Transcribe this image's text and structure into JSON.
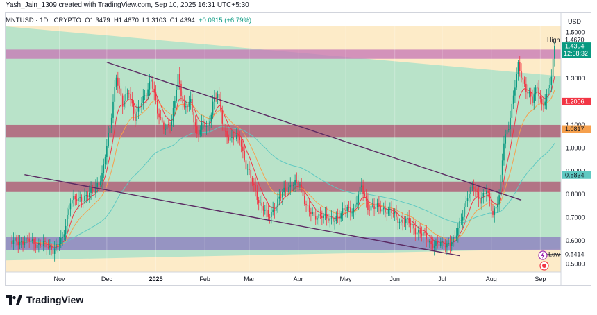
{
  "credit": "Yash_Jain_1309 created with TradingView.com, Sep 10, 2025 16:31 UTC+5:30",
  "symbol_line": {
    "symbol": "MNTUSD · 1D · CRYPTO",
    "open": "O1.3479",
    "high": "H1.4670",
    "low": "L1.3103",
    "close": "C1.4394",
    "change": "+0.0915 (+6.79%)"
  },
  "brand": "TradingView",
  "colors": {
    "up": "#089981",
    "down": "#f23645",
    "green_zone": "#b9e3c9",
    "yellow_zone": "#fdebc8",
    "pink_zone": "#c778b6",
    "purple_zone": "#8c7ec0",
    "maroon_zone": "#b05472",
    "ema_fast": "#f23645",
    "ema_mid": "#f6a04d",
    "ema_slow": "#5fc9c2",
    "trendline": "#5b2a63"
  },
  "chart_data": {
    "type": "candlestick",
    "currency": "USD",
    "y_ticks": [
      "1.5000",
      "1.4000",
      "1.3000",
      "1.2000",
      "1.1000",
      "1.0000",
      "0.9000",
      "0.8000",
      "0.7000",
      "0.6000",
      "0.5000"
    ],
    "x_ticks": [
      "Nov",
      "Dec",
      "2025",
      "Feb",
      "Mar",
      "Apr",
      "May",
      "Jun",
      "Jul",
      "Aug",
      "Sep"
    ],
    "high_label": "High",
    "low_label": "Low",
    "price_badges": [
      {
        "value": "1.4670",
        "kind": "high"
      },
      {
        "value": "1.4394",
        "kind": "last",
        "time": "12:58:32"
      },
      {
        "value": "1.2006",
        "kind": "ema_fast"
      },
      {
        "value": "1.0817",
        "kind": "ema_mid"
      },
      {
        "value": "0.8834",
        "kind": "ema_slow"
      },
      {
        "value": "0.5414",
        "kind": "low"
      }
    ],
    "zones": [
      {
        "name": "resistance-zone",
        "from": 1.385,
        "to": 1.425,
        "color": "pink"
      },
      {
        "name": "mid-resistance-zone",
        "from": 1.045,
        "to": 1.1,
        "color": "maroon"
      },
      {
        "name": "mid-support-zone",
        "from": 0.81,
        "to": 0.855,
        "color": "maroon"
      },
      {
        "name": "support-zone",
        "from": 0.56,
        "to": 0.615,
        "color": "purple"
      }
    ],
    "trendlines": [
      {
        "from": [
          "2024-12-01",
          1.37
        ],
        "to": [
          "2025-08-20",
          0.775
        ]
      },
      {
        "from": [
          "2024-10-10",
          0.885
        ],
        "to": [
          "2025-07-12",
          0.535
        ]
      }
    ],
    "close_path": [
      [
        "2024-10-01",
        0.59
      ],
      [
        "2024-10-10",
        0.6
      ],
      [
        "2024-10-20",
        0.585
      ],
      [
        "2024-10-28",
        0.565
      ],
      [
        "2024-11-03",
        0.6
      ],
      [
        "2024-11-08",
        0.78
      ],
      [
        "2024-11-13",
        0.77
      ],
      [
        "2024-11-18",
        0.8
      ],
      [
        "2024-11-23",
        0.81
      ],
      [
        "2024-11-28",
        0.89
      ],
      [
        "2024-12-03",
        1.08
      ],
      [
        "2024-12-07",
        1.32
      ],
      [
        "2024-12-11",
        1.18
      ],
      [
        "2024-12-15",
        1.25
      ],
      [
        "2024-12-19",
        1.13
      ],
      [
        "2024-12-24",
        1.21
      ],
      [
        "2024-12-29",
        1.3
      ],
      [
        "2025-01-02",
        1.15
      ],
      [
        "2025-01-07",
        1.09
      ],
      [
        "2025-01-11",
        1.1
      ],
      [
        "2025-01-15",
        1.32
      ],
      [
        "2025-01-19",
        1.16
      ],
      [
        "2025-01-23",
        1.2
      ],
      [
        "2025-01-27",
        1.06
      ],
      [
        "2025-01-31",
        1.1
      ],
      [
        "2025-02-03",
        1.09
      ],
      [
        "2025-02-06",
        1.2
      ],
      [
        "2025-02-09",
        1.23
      ],
      [
        "2025-02-13",
        1.08
      ],
      [
        "2025-02-18",
        1.03
      ],
      [
        "2025-02-23",
        1.05
      ],
      [
        "2025-02-27",
        0.92
      ],
      [
        "2025-03-03",
        0.85
      ],
      [
        "2025-03-08",
        0.76
      ],
      [
        "2025-03-13",
        0.7
      ],
      [
        "2025-03-18",
        0.76
      ],
      [
        "2025-03-23",
        0.81
      ],
      [
        "2025-03-28",
        0.85
      ],
      [
        "2025-04-02",
        0.84
      ],
      [
        "2025-04-06",
        0.76
      ],
      [
        "2025-04-11",
        0.69
      ],
      [
        "2025-04-16",
        0.72
      ],
      [
        "2025-04-21",
        0.68
      ],
      [
        "2025-04-26",
        0.71
      ],
      [
        "2025-05-01",
        0.73
      ],
      [
        "2025-05-06",
        0.74
      ],
      [
        "2025-05-11",
        0.83
      ],
      [
        "2025-05-15",
        0.75
      ],
      [
        "2025-05-20",
        0.74
      ],
      [
        "2025-05-25",
        0.74
      ],
      [
        "2025-05-30",
        0.72
      ],
      [
        "2025-06-04",
        0.69
      ],
      [
        "2025-06-09",
        0.68
      ],
      [
        "2025-06-14",
        0.65
      ],
      [
        "2025-06-19",
        0.62
      ],
      [
        "2025-06-24",
        0.59
      ],
      [
        "2025-06-29",
        0.58
      ],
      [
        "2025-07-04",
        0.59
      ],
      [
        "2025-07-09",
        0.6
      ],
      [
        "2025-07-13",
        0.7
      ],
      [
        "2025-07-17",
        0.79
      ],
      [
        "2025-07-21",
        0.83
      ],
      [
        "2025-07-25",
        0.78
      ],
      [
        "2025-07-29",
        0.81
      ],
      [
        "2025-08-02",
        0.72
      ],
      [
        "2025-08-06",
        0.79
      ],
      [
        "2025-08-09",
        1.02
      ],
      [
        "2025-08-12",
        1.1
      ],
      [
        "2025-08-15",
        1.23
      ],
      [
        "2025-08-18",
        1.35
      ],
      [
        "2025-08-21",
        1.29
      ],
      [
        "2025-08-24",
        1.25
      ],
      [
        "2025-08-27",
        1.2
      ],
      [
        "2025-08-30",
        1.26
      ],
      [
        "2025-09-02",
        1.19
      ],
      [
        "2025-09-05",
        1.22
      ],
      [
        "2025-09-08",
        1.3
      ],
      [
        "2025-09-10",
        1.439
      ]
    ]
  }
}
